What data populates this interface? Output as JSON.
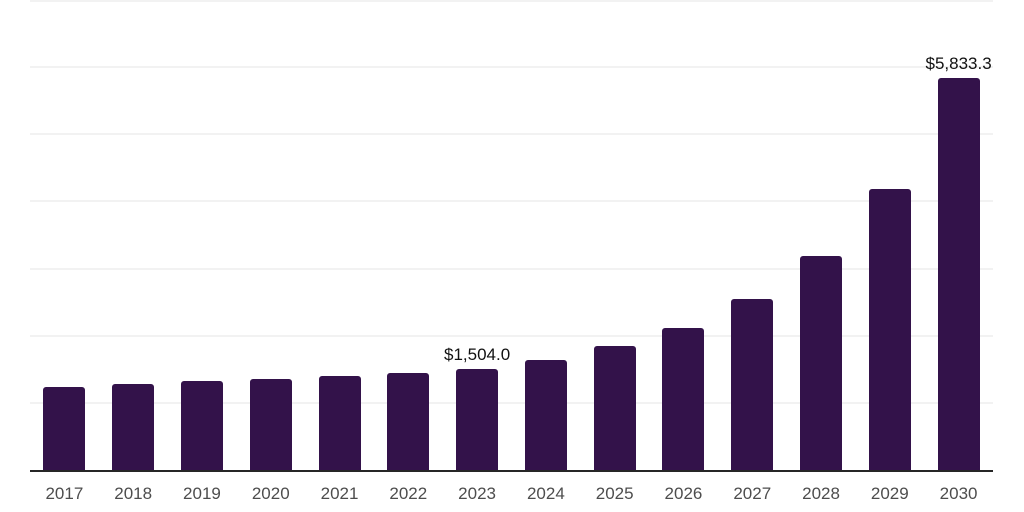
{
  "chart_data": {
    "type": "bar",
    "title": "",
    "xlabel": "",
    "ylabel": "",
    "categories": [
      "2017",
      "2018",
      "2019",
      "2020",
      "2021",
      "2022",
      "2023",
      "2024",
      "2025",
      "2026",
      "2027",
      "2028",
      "2029",
      "2030"
    ],
    "values": [
      1240,
      1280,
      1330,
      1360,
      1395,
      1450,
      1504.0,
      1640,
      1845,
      2120,
      2550,
      3190,
      4190,
      5833.3
    ],
    "annotations": [
      {
        "category": "2023",
        "text": "$1,504.0"
      },
      {
        "category": "2030",
        "text": "$5,833.3"
      }
    ],
    "ylim": [
      0,
      7000
    ],
    "gridline_step": 1000,
    "grid": true,
    "legend": false,
    "y_tick_labels_visible": false,
    "bar_color": "#33124a",
    "axis_color": "#262626",
    "gridline_color": "#f2f2f2",
    "tick_label_color": "#4d4d4d",
    "annotation_color": "#111111",
    "background_color": "#ffffff"
  }
}
